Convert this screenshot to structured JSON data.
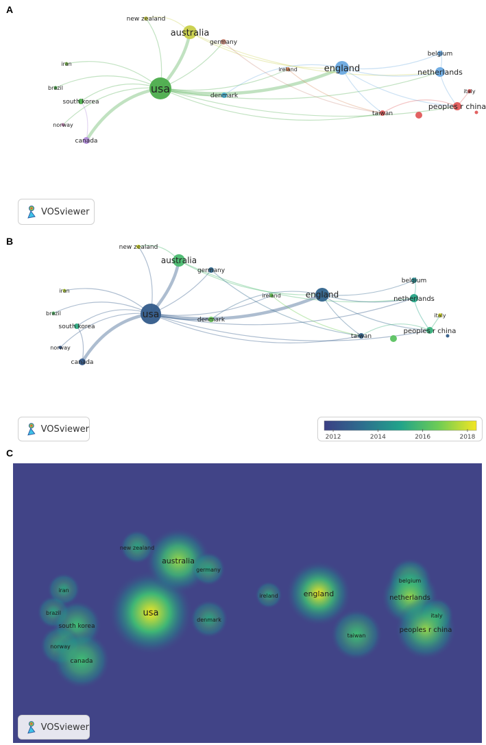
{
  "panels": {
    "a": {
      "letter": "A"
    },
    "b": {
      "letter": "B"
    },
    "c": {
      "letter": "C"
    }
  },
  "brand": {
    "name": "VOSviewer"
  },
  "colorbar": {
    "ticks": [
      "2012",
      "2014",
      "2016",
      "2018"
    ]
  },
  "nodes": [
    {
      "id": "usa",
      "label": "usa",
      "clusterColor": "#4cac4c",
      "year": 2012.5
    },
    {
      "id": "australia",
      "label": "australia",
      "clusterColor": "#c8cf49",
      "year": 2015.8
    },
    {
      "id": "new_zealand",
      "label": "new zealand",
      "clusterColor": "#cfd34a",
      "year": 2018.0
    },
    {
      "id": "germany",
      "label": "germany",
      "clusterColor": "#c88a7a",
      "year": 2013.0
    },
    {
      "id": "england",
      "label": "england",
      "clusterColor": "#6aa9e0",
      "year": 2012.8
    },
    {
      "id": "ireland",
      "label": "ireland",
      "clusterColor": "#d8865a",
      "year": 2016.6
    },
    {
      "id": "belgium",
      "label": "belgium",
      "clusterColor": "#6aa9e0",
      "year": 2014.0
    },
    {
      "id": "netherlands",
      "label": "netherlands",
      "clusterColor": "#6aa9e0",
      "year": 2015.0
    },
    {
      "id": "italy",
      "label": "italy",
      "clusterColor": "#e05a5a",
      "year": 2018.0
    },
    {
      "id": "peoples_r_china",
      "label": "peoples r china",
      "clusterColor": "#e05a5a",
      "year": 2015.4
    },
    {
      "id": "taiwan",
      "label": "taiwan",
      "clusterColor": "#e05a5a",
      "year": 2012.8
    },
    {
      "id": "denmark",
      "label": "denmark",
      "clusterColor": "#4cb6d8",
      "year": 2016.5
    },
    {
      "id": "iran",
      "label": "iran",
      "clusterColor": "#7cc04c",
      "year": 2017.6
    },
    {
      "id": "brazil",
      "label": "brazil",
      "clusterColor": "#4cac4c",
      "year": 2016.0
    },
    {
      "id": "south_korea",
      "label": "south korea",
      "clusterColor": "#4cac4c",
      "year": 2015.2
    },
    {
      "id": "norway",
      "label": "norway",
      "clusterColor": "#c68ab8",
      "year": 2012.3
    },
    {
      "id": "canada",
      "label": "canada",
      "clusterColor": "#b08ad8",
      "year": 2012.4
    },
    {
      "id": "unlabeled_red",
      "label": "",
      "clusterColor": "#e05a5a",
      "year": 2016.2
    },
    {
      "id": "unlabeled_small",
      "label": "",
      "clusterColor": "#e05a5a",
      "year": 2012.6
    }
  ],
  "links": [
    [
      "usa",
      "australia"
    ],
    [
      "usa",
      "england"
    ],
    [
      "usa",
      "new_zealand"
    ],
    [
      "usa",
      "germany"
    ],
    [
      "usa",
      "denmark"
    ],
    [
      "usa",
      "canada"
    ],
    [
      "usa",
      "iran"
    ],
    [
      "usa",
      "brazil"
    ],
    [
      "usa",
      "south_korea"
    ],
    [
      "usa",
      "norway"
    ],
    [
      "usa",
      "netherlands"
    ],
    [
      "usa",
      "peoples_r_china"
    ],
    [
      "usa",
      "taiwan"
    ],
    [
      "usa",
      "ireland"
    ],
    [
      "australia",
      "england"
    ],
    [
      "australia",
      "new_zealand"
    ],
    [
      "australia",
      "netherlands"
    ],
    [
      "england",
      "netherlands"
    ],
    [
      "england",
      "belgium"
    ],
    [
      "england",
      "peoples_r_china"
    ],
    [
      "england",
      "taiwan"
    ],
    [
      "england",
      "denmark"
    ],
    [
      "netherlands",
      "peoples_r_china"
    ],
    [
      "netherlands",
      "belgium"
    ],
    [
      "peoples_r_china",
      "italy"
    ],
    [
      "peoples_r_china",
      "taiwan"
    ],
    [
      "germany",
      "taiwan"
    ],
    [
      "ireland",
      "taiwan"
    ],
    [
      "canada",
      "south_korea"
    ]
  ]
}
